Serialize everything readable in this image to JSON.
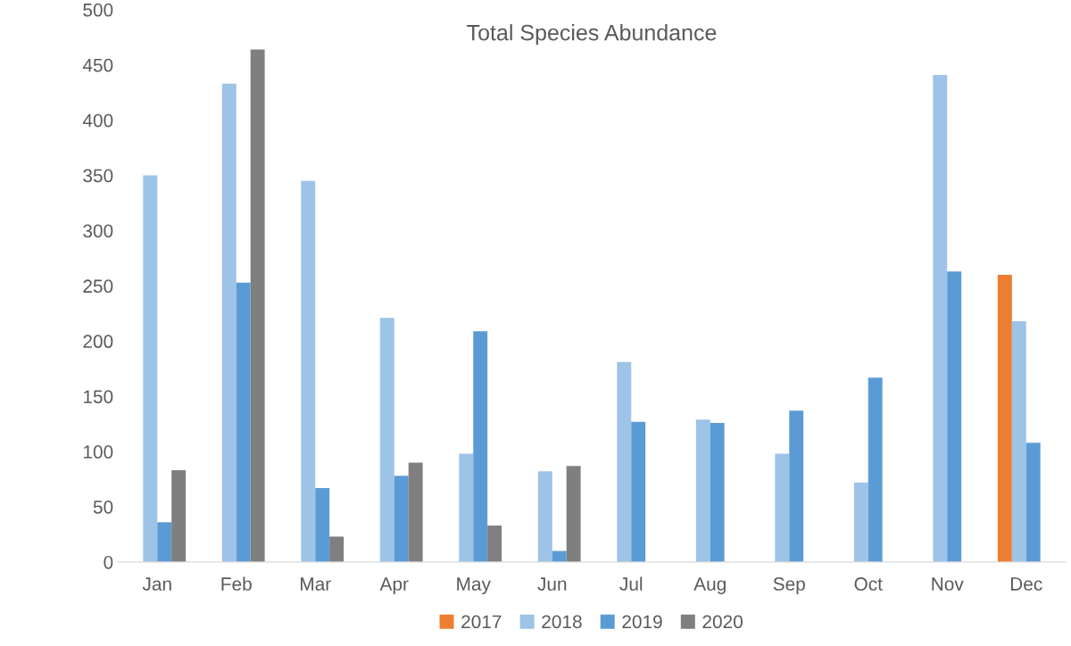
{
  "chart_data": {
    "type": "bar",
    "title": "Total Species Abundance",
    "categories": [
      "Jan",
      "Feb",
      "Mar",
      "Apr",
      "May",
      "Jun",
      "Jul",
      "Aug",
      "Sep",
      "Oct",
      "Nov",
      "Dec"
    ],
    "series": [
      {
        "name": "2017",
        "color": "#ed7d31",
        "values": [
          null,
          null,
          null,
          null,
          null,
          null,
          null,
          null,
          null,
          null,
          null,
          260
        ]
      },
      {
        "name": "2018",
        "color": "#9dc3e6",
        "values": [
          350,
          433,
          345,
          221,
          98,
          82,
          181,
          129,
          98,
          72,
          441,
          218
        ]
      },
      {
        "name": "2019",
        "color": "#5b9bd5",
        "values": [
          36,
          253,
          67,
          78,
          209,
          10,
          127,
          126,
          137,
          167,
          263,
          108
        ]
      },
      {
        "name": "2020",
        "color": "#7f7f7f",
        "values": [
          83,
          464,
          23,
          90,
          33,
          87,
          null,
          null,
          null,
          null,
          null,
          null
        ]
      }
    ],
    "ylim": [
      0,
      500
    ],
    "yticks": [
      0,
      50,
      100,
      150,
      200,
      250,
      300,
      350,
      400,
      450,
      500
    ],
    "grid": false,
    "legend": "bottom"
  }
}
